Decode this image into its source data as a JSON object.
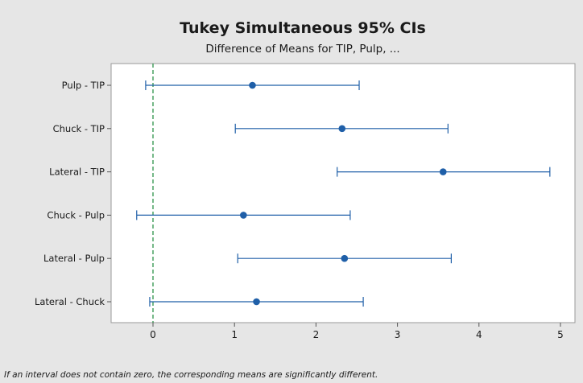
{
  "chart_data": {
    "type": "interval",
    "title": "Tukey Simultaneous 95% CIs",
    "subtitle": "Difference of Means for TIP, Pulp, ...",
    "categories": [
      "Pulp - TIP",
      "Chuck - TIP",
      "Lateral - TIP",
      "Chuck - Pulp",
      "Lateral - Pulp",
      "Lateral - Chuck"
    ],
    "estimates": [
      1.22,
      2.32,
      3.56,
      1.11,
      2.35,
      1.27
    ],
    "lower": [
      -0.09,
      1.01,
      2.26,
      -0.2,
      1.04,
      -0.04
    ],
    "upper": [
      2.53,
      3.62,
      4.87,
      2.42,
      3.66,
      2.58
    ],
    "xlim": [
      -0.5,
      5.15
    ],
    "x_ticks": [
      "0",
      "1",
      "2",
      "3",
      "4",
      "5"
    ],
    "reference_line": 0,
    "colors": {
      "series": "#1f5fa8",
      "reference": "#1a8a3a",
      "background": "#e6e6e6",
      "plot_area": "#ffffff"
    }
  },
  "footnote": "If an interval does not contain zero, the corresponding means are significantly different."
}
